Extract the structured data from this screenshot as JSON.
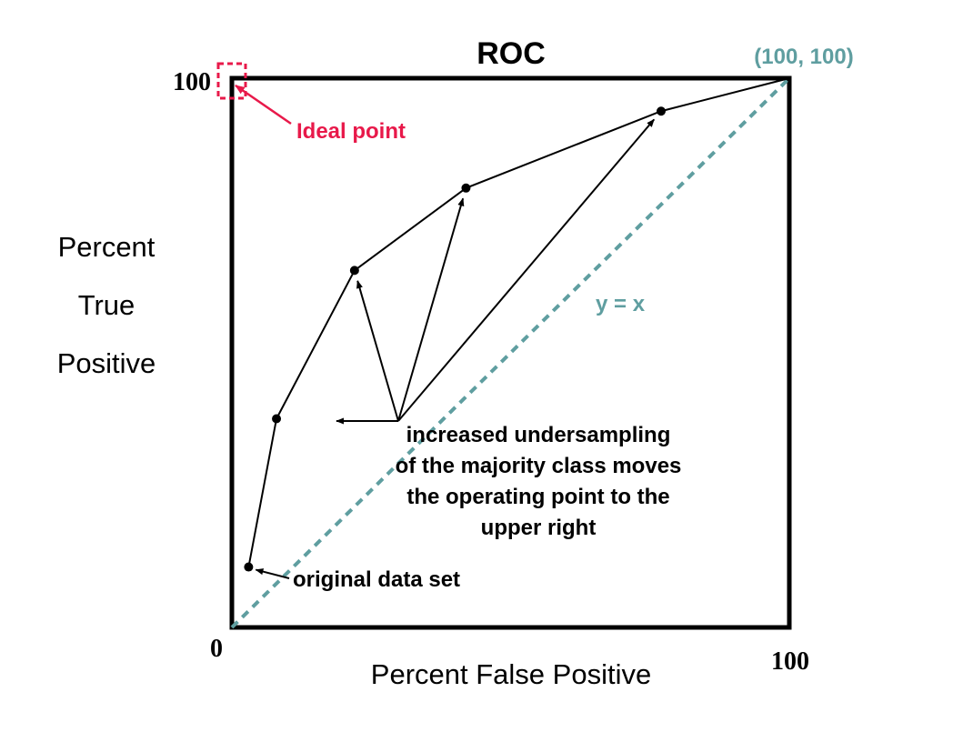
{
  "chart_data": {
    "type": "line",
    "title": "ROC",
    "xlabel": "Percent  False  Positive",
    "ylabel_lines": [
      "Percent",
      "True",
      "Positive"
    ],
    "xlim": [
      0,
      100
    ],
    "ylim": [
      0,
      100
    ],
    "grid": false,
    "ticks": {
      "origin": "0",
      "x_max": "100",
      "y_max": "100"
    },
    "series": [
      {
        "x": [
          3,
          8,
          22,
          42,
          77,
          100
        ],
        "y": [
          11,
          38,
          65,
          80,
          94,
          100
        ]
      }
    ],
    "diagonal": {
      "label": "y = x",
      "color": "#5f9ea0"
    },
    "corner_label": "(100, 100)",
    "ideal_point": {
      "label": "Ideal point",
      "x": 0,
      "y": 100,
      "color": "#e8194a"
    },
    "annotations": {
      "original": "original  data  set",
      "undersampling_lines": [
        "increased undersampling",
        "of  the  majority class moves",
        "the operating point to the",
        "upper right"
      ]
    }
  }
}
